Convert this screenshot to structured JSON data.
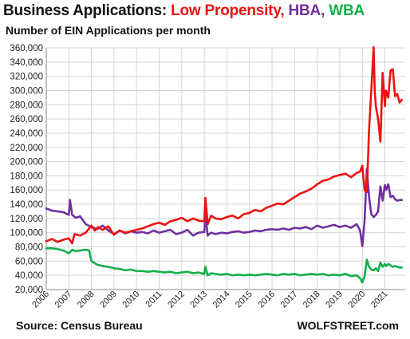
{
  "header": {
    "title_prefix": "Business Applications: ",
    "title_series_1": "Low Propensity,",
    "title_series_2": "HBA,",
    "title_series_3": "WBA",
    "subtitle": "Number of EIN Applications per month"
  },
  "footer": {
    "source": "Source: Census Bureau",
    "brand": "WOLFSTREET.com"
  },
  "chart_data": {
    "type": "line",
    "title": "Business Applications: Low Propensity, HBA, WBA",
    "subtitle": "Number of EIN Applications per month",
    "xlabel": "",
    "ylabel": "",
    "xlim": [
      2006.0,
      2021.9
    ],
    "ylim": [
      20000,
      360000
    ],
    "grid": true,
    "y_ticks": [
      20000,
      40000,
      60000,
      80000,
      100000,
      120000,
      140000,
      160000,
      180000,
      200000,
      220000,
      240000,
      260000,
      280000,
      300000,
      320000,
      340000,
      360000
    ],
    "y_tick_labels": [
      "20,000",
      "40,000",
      "60,000",
      "80,000",
      "100,000",
      "120,000",
      "140,000",
      "160,000",
      "180,000",
      "200,000",
      "220,000",
      "240,000",
      "260,000",
      "280,000",
      "300,000",
      "320,000",
      "340,000",
      "360,000"
    ],
    "x_ticks": [
      2006,
      2007,
      2008,
      2009,
      2010,
      2011,
      2012,
      2013,
      2014,
      2015,
      2016,
      2017,
      2018,
      2019,
      2020,
      2021
    ],
    "x_tick_labels": [
      "2006",
      "2007",
      "2008",
      "2009",
      "2010",
      "2011",
      "2012",
      "2013",
      "2014",
      "2015",
      "2016",
      "2017",
      "2018",
      "2019",
      "2020",
      "2021"
    ],
    "colors": {
      "low_propensity": "#ee1111",
      "hba": "#7030a0",
      "wba": "#11b04a"
    },
    "series": [
      {
        "name": "Low Propensity",
        "color": "#ee1111",
        "x": [
          2006.0,
          2006.25,
          2006.5,
          2006.75,
          2007.0,
          2007.15,
          2007.25,
          2007.5,
          2007.75,
          2008.0,
          2008.15,
          2008.3,
          2008.5,
          2008.75,
          2009.0,
          2009.25,
          2009.5,
          2009.75,
          2010.0,
          2010.25,
          2010.5,
          2010.75,
          2011.0,
          2011.25,
          2011.5,
          2011.75,
          2012.0,
          2012.25,
          2012.5,
          2012.75,
          2013.0,
          2013.05,
          2013.15,
          2013.3,
          2013.5,
          2013.75,
          2014.0,
          2014.25,
          2014.5,
          2014.75,
          2015.0,
          2015.25,
          2015.5,
          2015.75,
          2016.0,
          2016.25,
          2016.5,
          2016.75,
          2017.0,
          2017.25,
          2017.5,
          2017.75,
          2018.0,
          2018.25,
          2018.5,
          2018.75,
          2019.0,
          2019.25,
          2019.5,
          2019.75,
          2019.9,
          2020.0,
          2020.1,
          2020.2,
          2020.3,
          2020.4,
          2020.5,
          2020.55,
          2020.6,
          2020.7,
          2020.8,
          2020.9,
          2021.0,
          2021.05,
          2021.15,
          2021.25,
          2021.35,
          2021.45,
          2021.55,
          2021.65,
          2021.75
        ],
        "values": [
          88000,
          91000,
          87000,
          90000,
          92000,
          85000,
          98000,
          96000,
          100000,
          110000,
          103000,
          108000,
          104000,
          109000,
          97000,
          103000,
          100000,
          102000,
          104000,
          106000,
          109000,
          112000,
          114000,
          111000,
          116000,
          118000,
          121000,
          116000,
          120000,
          117000,
          116000,
          149000,
          112000,
          124000,
          120000,
          119000,
          122000,
          124000,
          120000,
          126000,
          128000,
          132000,
          130000,
          135000,
          138000,
          141000,
          140000,
          145000,
          150000,
          155000,
          158000,
          162000,
          168000,
          173000,
          175000,
          179000,
          181000,
          183000,
          178000,
          184000,
          186000,
          194000,
          160000,
          157000,
          246000,
          300000,
          361000,
          300000,
          278000,
          260000,
          228000,
          325000,
          278000,
          300000,
          290000,
          328000,
          330000,
          292000,
          295000,
          283000,
          287000
        ]
      },
      {
        "name": "HBA",
        "color": "#7030a0",
        "x": [
          2006.0,
          2006.25,
          2006.5,
          2006.75,
          2007.0,
          2007.05,
          2007.15,
          2007.3,
          2007.5,
          2007.75,
          2008.0,
          2008.25,
          2008.5,
          2008.75,
          2009.0,
          2009.25,
          2009.5,
          2009.75,
          2010.0,
          2010.25,
          2010.5,
          2010.75,
          2011.0,
          2011.25,
          2011.5,
          2011.75,
          2012.0,
          2012.25,
          2012.5,
          2012.75,
          2013.0,
          2013.05,
          2013.15,
          2013.3,
          2013.5,
          2013.75,
          2014.0,
          2014.25,
          2014.5,
          2014.75,
          2015.0,
          2015.25,
          2015.5,
          2015.75,
          2016.0,
          2016.25,
          2016.5,
          2016.75,
          2017.0,
          2017.25,
          2017.5,
          2017.75,
          2018.0,
          2018.25,
          2018.5,
          2018.75,
          2019.0,
          2019.25,
          2019.5,
          2019.75,
          2019.9,
          2020.0,
          2020.1,
          2020.2,
          2020.3,
          2020.4,
          2020.5,
          2020.6,
          2020.7,
          2020.8,
          2020.9,
          2021.0,
          2021.05,
          2021.15,
          2021.25,
          2021.35,
          2021.45,
          2021.55,
          2021.65,
          2021.75
        ],
        "values": [
          134000,
          131000,
          130000,
          129000,
          125000,
          146000,
          125000,
          121000,
          123000,
          112000,
          108000,
          105000,
          110000,
          103000,
          98000,
          103000,
          99000,
          102000,
          100000,
          101000,
          99000,
          103000,
          100000,
          102000,
          104000,
          98000,
          100000,
          104000,
          96000,
          100000,
          101000,
          125000,
          96000,
          100000,
          98000,
          100000,
          99000,
          101000,
          102000,
          100000,
          101000,
          103000,
          102000,
          104000,
          105000,
          104000,
          106000,
          104000,
          107000,
          106000,
          108000,
          105000,
          110000,
          107000,
          109000,
          111000,
          108000,
          110000,
          107000,
          112000,
          103000,
          81000,
          117000,
          190000,
          150000,
          126000,
          122000,
          125000,
          130000,
          165000,
          145000,
          167000,
          160000,
          168000,
          150000,
          152000,
          147000,
          145000,
          146000,
          146000
        ]
      },
      {
        "name": "WBA",
        "color": "#11b04a",
        "x": [
          2006.0,
          2006.25,
          2006.5,
          2006.75,
          2007.0,
          2007.15,
          2007.3,
          2007.5,
          2007.75,
          2007.9,
          2008.0,
          2008.25,
          2008.5,
          2008.75,
          2009.0,
          2009.25,
          2009.5,
          2009.75,
          2010.0,
          2010.25,
          2010.5,
          2010.75,
          2011.0,
          2011.25,
          2011.5,
          2011.75,
          2012.0,
          2012.25,
          2012.5,
          2012.75,
          2013.0,
          2013.05,
          2013.15,
          2013.3,
          2013.5,
          2013.75,
          2014.0,
          2014.25,
          2014.5,
          2014.75,
          2015.0,
          2015.25,
          2015.5,
          2015.75,
          2016.0,
          2016.25,
          2016.5,
          2016.75,
          2017.0,
          2017.25,
          2017.5,
          2017.75,
          2018.0,
          2018.25,
          2018.5,
          2018.75,
          2019.0,
          2019.25,
          2019.5,
          2019.75,
          2019.9,
          2020.0,
          2020.1,
          2020.2,
          2020.3,
          2020.4,
          2020.5,
          2020.6,
          2020.7,
          2020.8,
          2020.9,
          2021.0,
          2021.05,
          2021.15,
          2021.25,
          2021.35,
          2021.45,
          2021.55,
          2021.65,
          2021.75
        ],
        "values": [
          78000,
          78000,
          77000,
          75000,
          71000,
          76000,
          74000,
          75000,
          76000,
          75000,
          60000,
          55000,
          53000,
          52000,
          50000,
          49000,
          47000,
          48000,
          46000,
          46000,
          45000,
          46000,
          45000,
          44000,
          45000,
          43000,
          44000,
          45000,
          43000,
          44000,
          42000,
          52000,
          40000,
          43000,
          42000,
          41000,
          42000,
          40000,
          41000,
          40000,
          41000,
          40000,
          41000,
          42000,
          41000,
          40000,
          42000,
          41000,
          42000,
          40000,
          41000,
          42000,
          41000,
          42000,
          40000,
          41000,
          40000,
          42000,
          39000,
          40000,
          36000,
          30000,
          39000,
          62000,
          52000,
          48000,
          47000,
          50000,
          46000,
          58000,
          52000,
          56000,
          53000,
          56000,
          54000,
          52000,
          53000,
          52000,
          51000,
          51000
        ]
      }
    ]
  }
}
